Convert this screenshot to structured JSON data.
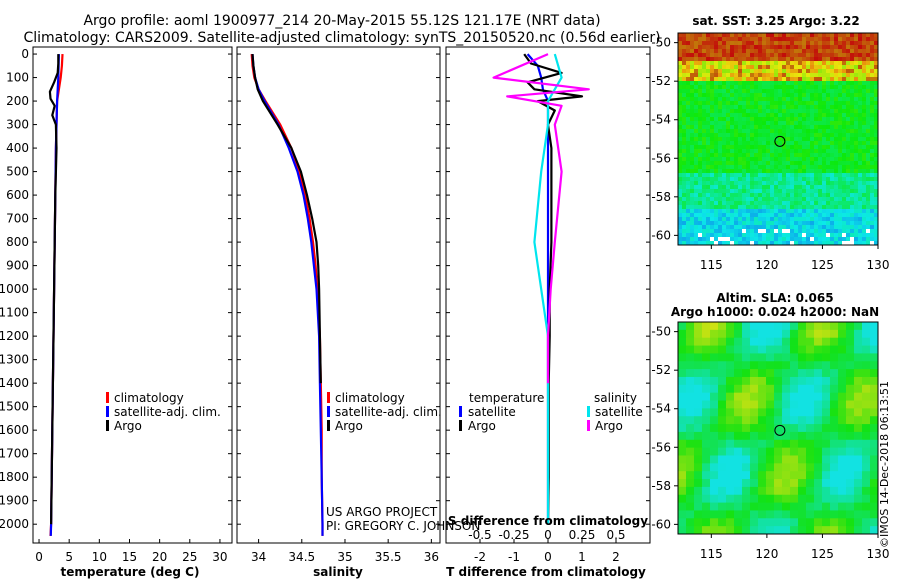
{
  "header": {
    "line1": "Argo profile: aoml 1900977_214 20-May-2015 55.12S 121.17E (NRT data)",
    "line2": "Climatology: CARS2009. Satellite-adjusted climatology: synTS_20150520.nc (0.56d earlier)"
  },
  "depth_axis": {
    "ticks": [
      "0",
      "100",
      "200",
      "300",
      "400",
      "500",
      "600",
      "700",
      "800",
      "900",
      "1000",
      "1100",
      "1200",
      "1300",
      "1400",
      "1500",
      "1600",
      "1700",
      "1800",
      "1900",
      "2000"
    ]
  },
  "colors": {
    "climatology": "#ff0000",
    "satellite": "#0000ff",
    "argo": "#000000",
    "s_satellite": "#00e5ee",
    "s_argo": "#ff00ff"
  },
  "credit": {
    "line1": "US ARGO PROJECT",
    "line2": "PI: GREGORY C. JOHNSON"
  },
  "timestamp": "©IMOS 14-Dec-2018 06:13:51",
  "chart_data": [
    {
      "type": "line",
      "title": "",
      "xlabel": "temperature (deg C)",
      "ylabel": "depth",
      "xlim": [
        -1,
        32
      ],
      "ylim": [
        2080,
        -30
      ],
      "xticks": [
        "0",
        "5",
        "10",
        "15",
        "20",
        "25",
        "30"
      ],
      "legend": [
        "climatology",
        "satellite-adj. clim.",
        "Argo"
      ],
      "legend_position": "bottom-right",
      "series": [
        {
          "name": "climatology",
          "depth": [
            0,
            50,
            100,
            150,
            200,
            300,
            400,
            600,
            800,
            1000,
            1200,
            1400,
            1600,
            1800,
            2000,
            2050
          ],
          "values": [
            3.9,
            3.8,
            3.6,
            3.3,
            3.0,
            2.9,
            2.8,
            2.7,
            2.6,
            2.5,
            2.4,
            2.3,
            2.2,
            2.1,
            2.0,
            1.9
          ]
        },
        {
          "name": "satellite-adj. clim.",
          "depth": [
            0,
            50,
            100,
            150,
            200,
            300,
            400,
            600,
            800,
            1000,
            1200,
            1400,
            1600,
            1800,
            2000,
            2050
          ],
          "values": [
            3.3,
            3.25,
            3.2,
            3.1,
            3.0,
            2.9,
            2.8,
            2.7,
            2.6,
            2.5,
            2.4,
            2.3,
            2.2,
            2.1,
            2.0,
            1.95
          ]
        },
        {
          "name": "Argo",
          "depth": [
            0,
            40,
            80,
            120,
            160,
            190,
            220,
            260,
            300,
            400,
            500,
            600,
            800,
            1000,
            1200,
            1400,
            1600,
            1800,
            2000
          ],
          "values": [
            3.2,
            3.2,
            3.1,
            2.5,
            1.8,
            1.9,
            2.6,
            2.2,
            2.8,
            2.9,
            2.8,
            2.7,
            2.6,
            2.5,
            2.4,
            2.3,
            2.2,
            2.1,
            2.0
          ]
        }
      ]
    },
    {
      "type": "line",
      "xlabel": "salinity",
      "xlim": [
        33.75,
        36.1
      ],
      "ylim": [
        2080,
        -30
      ],
      "xticks": [
        "34",
        "34.5",
        "35",
        "35.5",
        "36"
      ],
      "legend": [
        "climatology",
        "satellite-adj. clim.",
        "Argo"
      ],
      "legend_position": "bottom-right",
      "series": [
        {
          "name": "climatology",
          "depth": [
            0,
            50,
            100,
            150,
            200,
            300,
            400,
            500,
            600,
            700,
            800,
            900,
            1000,
            1200,
            1400,
            1600,
            1800,
            2000,
            2050
          ],
          "values": [
            33.92,
            33.93,
            33.95,
            34.0,
            34.08,
            34.25,
            34.38,
            34.47,
            34.54,
            34.59,
            34.63,
            34.66,
            34.68,
            34.71,
            34.72,
            34.73,
            34.73,
            34.74,
            34.74
          ]
        },
        {
          "name": "satellite-adj. clim.",
          "depth": [
            0,
            50,
            100,
            150,
            200,
            300,
            400,
            500,
            600,
            700,
            800,
            900,
            1000,
            1200,
            1400,
            1600,
            1800,
            2000,
            2050
          ],
          "values": [
            33.93,
            33.94,
            33.96,
            34.0,
            34.07,
            34.23,
            34.35,
            34.45,
            34.52,
            34.57,
            34.61,
            34.64,
            34.67,
            34.7,
            34.71,
            34.72,
            34.73,
            34.74,
            34.74
          ]
        },
        {
          "name": "Argo",
          "depth": [
            0,
            50,
            100,
            150,
            200,
            300,
            400,
            500,
            600,
            700,
            800,
            900,
            1000,
            1200,
            1400
          ],
          "values": [
            33.93,
            33.94,
            33.96,
            33.99,
            34.05,
            34.22,
            34.38,
            34.49,
            34.56,
            34.62,
            34.67,
            34.69,
            34.7,
            34.71,
            34.72
          ]
        }
      ]
    },
    {
      "type": "line",
      "xlabel": "T difference from climatology",
      "xlabel_secondary": "S difference from climatology",
      "xlim": [
        -3,
        3
      ],
      "ylim": [
        2080,
        -30
      ],
      "xticks": [
        "-2",
        "-1",
        "0",
        "1",
        "2"
      ],
      "xticks_secondary": [
        "-0.5",
        "-0.25",
        "0",
        "0.25",
        "0.5"
      ],
      "legend_groups": [
        {
          "title": "temperature",
          "items": [
            "satellite",
            "Argo"
          ]
        },
        {
          "title": "salinity",
          "items": [
            "satellite",
            "Argo"
          ]
        }
      ],
      "series": [
        {
          "name": "temperature satellite",
          "depth": [
            0,
            50,
            100,
            150,
            200,
            400,
            800,
            1200,
            1600,
            2000
          ],
          "values": [
            -0.6,
            -0.3,
            -0.2,
            -0.15,
            0.0,
            0.0,
            0.0,
            0.0,
            0.0,
            0.0
          ]
        },
        {
          "name": "temperature Argo",
          "depth": [
            0,
            40,
            80,
            120,
            150,
            180,
            200,
            240,
            300,
            400,
            600,
            800,
            1000,
            1200,
            1400,
            1600,
            1800,
            2000
          ],
          "values": [
            -0.7,
            -0.5,
            0.4,
            -0.6,
            -0.4,
            1.0,
            -0.3,
            0.2,
            0.0,
            0.1,
            0.1,
            0.1,
            0.05,
            0.05,
            0.02,
            0.02,
            0.02,
            0.0
          ]
        },
        {
          "name": "salinity satellite",
          "depth": [
            0,
            100,
            200,
            300,
            500,
            800,
            1000,
            1200,
            1400,
            1600,
            1800,
            2000
          ],
          "values": [
            0.05,
            0.1,
            0.0,
            0.0,
            -0.05,
            -0.1,
            -0.05,
            0.0,
            0.0,
            0.0,
            0.0,
            0.0
          ]
        },
        {
          "name": "salinity Argo",
          "depth": [
            0,
            100,
            150,
            180,
            220,
            300,
            500,
            800,
            1000,
            1200,
            1400
          ],
          "values": [
            0.0,
            -0.4,
            0.3,
            -0.3,
            0.1,
            0.05,
            0.1,
            0.05,
            0.02,
            0.0,
            0.0
          ]
        }
      ]
    },
    {
      "type": "heatmap",
      "title": "sat. SST: 3.25 Argo: 3.22",
      "xlim": [
        112,
        130
      ],
      "ylim": [
        -60.5,
        -49.5
      ],
      "xticks": [
        "115",
        "120",
        "125",
        "130"
      ],
      "yticks": [
        "-50",
        "-52",
        "-54",
        "-56",
        "-58",
        "-60"
      ],
      "marker": {
        "lon": 121.17,
        "lat": -55.12
      }
    },
    {
      "type": "heatmap",
      "title": "Altim. SLA: 0.065",
      "subtitle": "Argo h1000: 0.024 h2000: NaN",
      "xlim": [
        112,
        130
      ],
      "ylim": [
        -60.5,
        -49.5
      ],
      "xticks": [
        "115",
        "120",
        "125",
        "130"
      ],
      "yticks": [
        "-50",
        "-52",
        "-54",
        "-56",
        "-58",
        "-60"
      ],
      "marker": {
        "lon": 121.17,
        "lat": -55.12
      }
    }
  ]
}
